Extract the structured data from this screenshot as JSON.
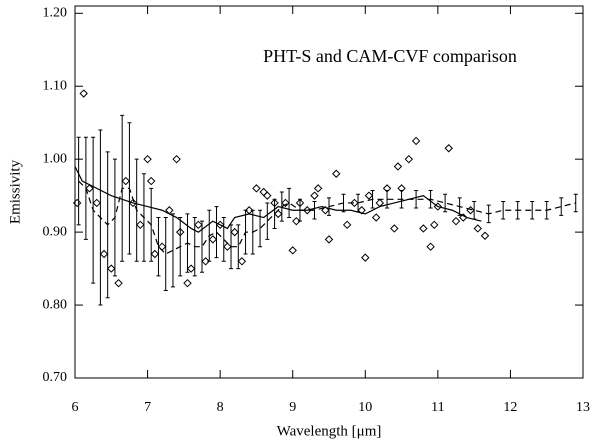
{
  "chart_data": {
    "type": "scatter",
    "annotation": "PHT-S and CAM-CVF comparison",
    "xlabel": "Wavelength [μm]",
    "ylabel": "Emissivity",
    "xlim": [
      6,
      13
    ],
    "ylim": [
      0.7,
      1.21
    ],
    "xticks": [
      6,
      7,
      8,
      9,
      10,
      11,
      12,
      13
    ],
    "yticks": [
      {
        "value": 0.7,
        "label": "0.70"
      },
      {
        "value": 0.8,
        "label": "0.80"
      },
      {
        "value": 0.9,
        "label": "0.90"
      },
      {
        "value": 1.0,
        "label": "1.00"
      },
      {
        "value": 1.1,
        "label": "1.10"
      },
      {
        "value": 1.2,
        "label": "1.20"
      }
    ],
    "color": "#000000",
    "series": [
      {
        "type": "scatter",
        "marker": "diamond",
        "x": [
          6.03,
          6.12,
          6.2,
          6.3,
          6.4,
          6.5,
          6.6,
          6.7,
          6.8,
          6.9,
          7.0,
          7.05,
          7.1,
          7.2,
          7.3,
          7.4,
          7.45,
          7.55,
          7.6,
          7.7,
          7.8,
          7.9,
          8.0,
          8.1,
          8.2,
          8.3,
          8.4,
          8.5,
          8.6,
          8.65,
          8.75,
          8.8,
          8.9,
          9.0,
          9.05,
          9.1,
          9.2,
          9.3,
          9.35,
          9.45,
          9.5,
          9.6,
          9.75,
          9.85,
          9.95,
          10.0,
          10.05,
          10.15,
          10.2,
          10.3,
          10.4,
          10.45,
          10.5,
          10.6,
          10.7,
          10.8,
          10.9,
          10.95,
          11.0,
          11.15,
          11.25,
          11.35,
          11.45,
          11.55,
          11.65
        ],
        "values": [
          0.94,
          1.09,
          0.96,
          0.94,
          0.87,
          0.85,
          0.83,
          0.97,
          0.94,
          0.91,
          1.0,
          0.97,
          0.87,
          0.88,
          0.93,
          1.0,
          0.9,
          0.83,
          0.85,
          0.91,
          0.86,
          0.89,
          0.91,
          0.88,
          0.9,
          0.86,
          0.93,
          0.96,
          0.955,
          0.95,
          0.94,
          0.925,
          0.94,
          0.875,
          0.915,
          0.94,
          0.93,
          0.95,
          0.96,
          0.93,
          0.89,
          0.98,
          0.91,
          0.94,
          0.93,
          0.865,
          0.95,
          0.92,
          0.94,
          0.96,
          0.905,
          0.99,
          0.96,
          1.0,
          1.025,
          0.905,
          0.88,
          0.91,
          0.935,
          1.015,
          0.915,
          0.92,
          0.93,
          0.905,
          0.895
        ]
      },
      {
        "type": "line",
        "dash": false,
        "x": [
          6.0,
          6.1,
          6.3,
          6.5,
          6.8,
          7.0,
          7.2,
          7.4,
          7.6,
          7.7,
          7.9,
          8.1,
          8.2,
          8.4,
          8.6,
          8.8,
          9.0,
          9.2,
          9.4,
          9.6,
          9.8,
          10.0,
          10.2,
          10.4,
          10.6,
          10.8,
          11.0,
          11.2,
          11.4,
          11.6
        ],
        "values": [
          0.99,
          0.97,
          0.96,
          0.95,
          0.94,
          0.935,
          0.93,
          0.92,
          0.905,
          0.9,
          0.915,
          0.905,
          0.92,
          0.925,
          0.92,
          0.935,
          0.93,
          0.93,
          0.935,
          0.93,
          0.93,
          0.925,
          0.935,
          0.94,
          0.945,
          0.95,
          0.935,
          0.93,
          0.92,
          0.915
        ]
      },
      {
        "type": "line",
        "dash": true,
        "x": [
          6.05,
          6.15,
          6.25,
          6.35,
          6.45,
          6.55,
          6.65,
          6.75,
          6.85,
          6.95,
          7.05,
          7.15,
          7.25,
          7.35,
          7.45,
          7.55,
          7.65,
          7.75,
          7.85,
          7.95,
          8.05,
          8.15,
          8.25,
          8.35,
          8.45,
          8.55,
          8.65,
          8.75,
          8.85,
          8.95,
          9.1,
          9.3,
          9.5,
          9.7,
          9.9,
          10.1,
          10.3,
          10.5,
          10.7,
          10.9,
          11.1,
          11.3,
          11.5,
          11.7,
          11.9,
          12.1,
          12.3,
          12.5,
          12.7,
          12.9
        ],
        "values": [
          0.97,
          0.96,
          0.93,
          0.92,
          0.91,
          0.92,
          0.96,
          0.96,
          0.93,
          0.92,
          0.91,
          0.88,
          0.87,
          0.875,
          0.88,
          0.885,
          0.88,
          0.88,
          0.895,
          0.9,
          0.89,
          0.88,
          0.88,
          0.9,
          0.9,
          0.905,
          0.915,
          0.925,
          0.935,
          0.94,
          0.93,
          0.93,
          0.935,
          0.94,
          0.94,
          0.945,
          0.945,
          0.945,
          0.945,
          0.945,
          0.94,
          0.935,
          0.93,
          0.925,
          0.93,
          0.93,
          0.93,
          0.93,
          0.935,
          0.94
        ],
        "errors": [
          0.06,
          0.07,
          0.1,
          0.12,
          0.1,
          0.08,
          0.1,
          0.09,
          0.07,
          0.06,
          0.05,
          0.04,
          0.05,
          0.05,
          0.04,
          0.04,
          0.04,
          0.035,
          0.035,
          0.035,
          0.03,
          0.03,
          0.03,
          0.03,
          0.03,
          0.025,
          0.025,
          0.02,
          0.02,
          0.02,
          0.015,
          0.012,
          0.012,
          0.012,
          0.012,
          0.012,
          0.012,
          0.012,
          0.012,
          0.012,
          0.012,
          0.012,
          0.012,
          0.012,
          0.012,
          0.012,
          0.012,
          0.012,
          0.012,
          0.012
        ]
      }
    ]
  }
}
